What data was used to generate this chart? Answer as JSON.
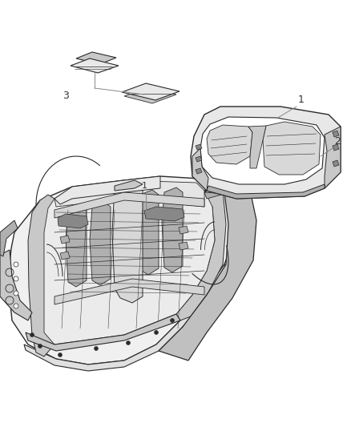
{
  "background_color": "#ffffff",
  "fig_width": 4.38,
  "fig_height": 5.33,
  "dpi": 100,
  "line_color": "#2a2a2a",
  "light_gray": "#c8c8c8",
  "mid_gray": "#b0b0b0",
  "dark_gray": "#888888",
  "very_light": "#e8e8e8",
  "white": "#ffffff",
  "label_color": "#333333",
  "callout_color": "#888888"
}
